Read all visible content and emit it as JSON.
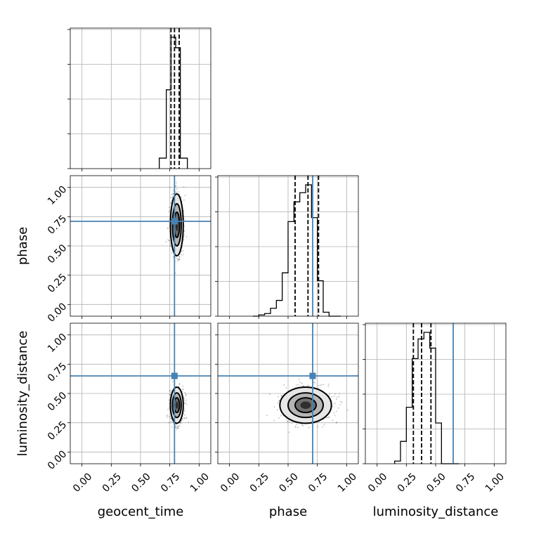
{
  "colors": {
    "truth": "#4682b4",
    "grid": "#b0b0b0",
    "contour_fill_levels": [
      "#ffffff",
      "#e6e6e6",
      "#b5b5b5",
      "#6e6e6e",
      "#2e2e2e"
    ]
  },
  "chart_data": {
    "type": "corner",
    "parameters": [
      "geocent_time",
      "phase",
      "luminosity_distance"
    ],
    "axis_labels": {
      "x": [
        "geocent_time",
        "phase",
        "luminosity_distance"
      ],
      "y_row2": "phase",
      "y_row3": "luminosity_distance"
    },
    "tick_values": [
      0.0,
      0.25,
      0.5,
      0.75,
      1.0
    ],
    "tick_labels": [
      "0.00",
      "0.25",
      "0.50",
      "0.75",
      "1.00"
    ],
    "xlim": [
      -0.1,
      1.1
    ],
    "grid": true,
    "truths": {
      "geocent_time": 0.79,
      "phase": 0.71,
      "luminosity_distance": 0.65
    },
    "histograms": [
      {
        "parameter": "geocent_time",
        "bin_edges": [
          0.66,
          0.72,
          0.76,
          0.8,
          0.84,
          0.9
        ],
        "counts": [
          8,
          60,
          100,
          92,
          8
        ],
        "quantiles": [
          0.76,
          0.79,
          0.83
        ]
      },
      {
        "parameter": "phase",
        "bin_edges": [
          0.2,
          0.25,
          0.3,
          0.35,
          0.4,
          0.45,
          0.5,
          0.55,
          0.6,
          0.65,
          0.7,
          0.75,
          0.8,
          0.85,
          0.9,
          0.95
        ],
        "counts": [
          0,
          1,
          2,
          6,
          12,
          33,
          72,
          87,
          94,
          100,
          75,
          27,
          3,
          0,
          0
        ],
        "quantiles": [
          0.56,
          0.67,
          0.76
        ]
      },
      {
        "parameter": "luminosity_distance",
        "bin_edges": [
          0.15,
          0.2,
          0.25,
          0.3,
          0.35,
          0.4,
          0.45,
          0.5,
          0.55,
          0.6,
          0.65,
          0.7
        ],
        "counts": [
          2,
          17,
          43,
          80,
          95,
          100,
          88,
          31,
          0,
          0,
          0
        ],
        "quantiles": [
          0.31,
          0.38,
          0.46
        ]
      }
    ],
    "density_panels": [
      {
        "x": "geocent_time",
        "y": "phase",
        "center": [
          0.81,
          0.68
        ],
        "sd": [
          0.025,
          0.12
        ],
        "levels_sd": [
          2.2,
          1.5,
          0.9,
          0.45
        ]
      },
      {
        "x": "geocent_time",
        "y": "luminosity_distance",
        "center": [
          0.81,
          0.4
        ],
        "sd": [
          0.025,
          0.07
        ],
        "levels_sd": [
          2.2,
          1.5,
          0.9,
          0.45
        ]
      },
      {
        "x": "phase",
        "y": "luminosity_distance",
        "center": [
          0.65,
          0.4
        ],
        "sd": [
          0.1,
          0.07
        ],
        "levels_sd": [
          2.2,
          1.5,
          0.9,
          0.45
        ]
      }
    ]
  }
}
